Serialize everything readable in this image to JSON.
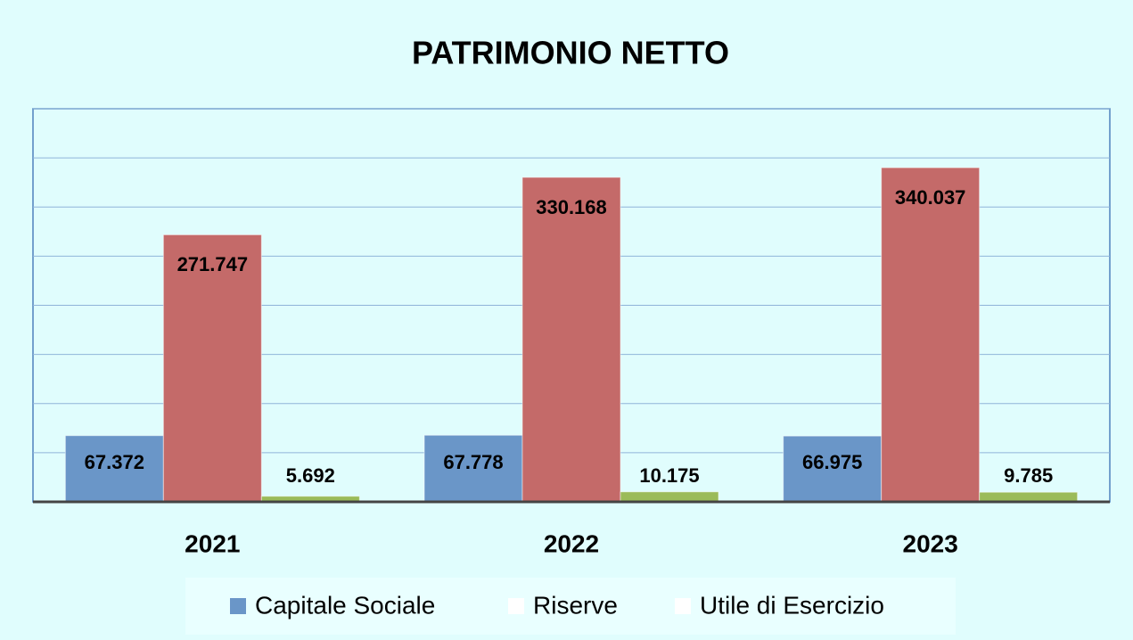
{
  "chart_data": {
    "type": "bar",
    "title": "PATRIMONIO NETTO",
    "categories": [
      "2021",
      "2022",
      "2023"
    ],
    "series": [
      {
        "name": "Capitale Sociale",
        "color": "#6a96c8",
        "legend_color": "#6a96c8",
        "values": [
          67.372,
          67.778,
          66.975
        ],
        "value_labels": [
          "67.372",
          "67.778",
          "66.975"
        ]
      },
      {
        "name": "Riserve",
        "color": "#c46a69",
        "legend_color": "#ffffff",
        "values": [
          271.747,
          330.168,
          340.037
        ],
        "value_labels": [
          "271.747",
          "330.168",
          "340.037"
        ]
      },
      {
        "name": "Utile di Esercizio",
        "color": "#9bbb59",
        "legend_color": "#ffffff",
        "values": [
          5.692,
          10.175,
          9.785
        ],
        "value_labels": [
          "5.692",
          "10.175",
          "9.785"
        ]
      }
    ],
    "ylim": [
      0,
      400
    ],
    "yticks": [
      0,
      50,
      100,
      150,
      200,
      250,
      300,
      350,
      400
    ],
    "grid": true,
    "legend": "bottom"
  }
}
